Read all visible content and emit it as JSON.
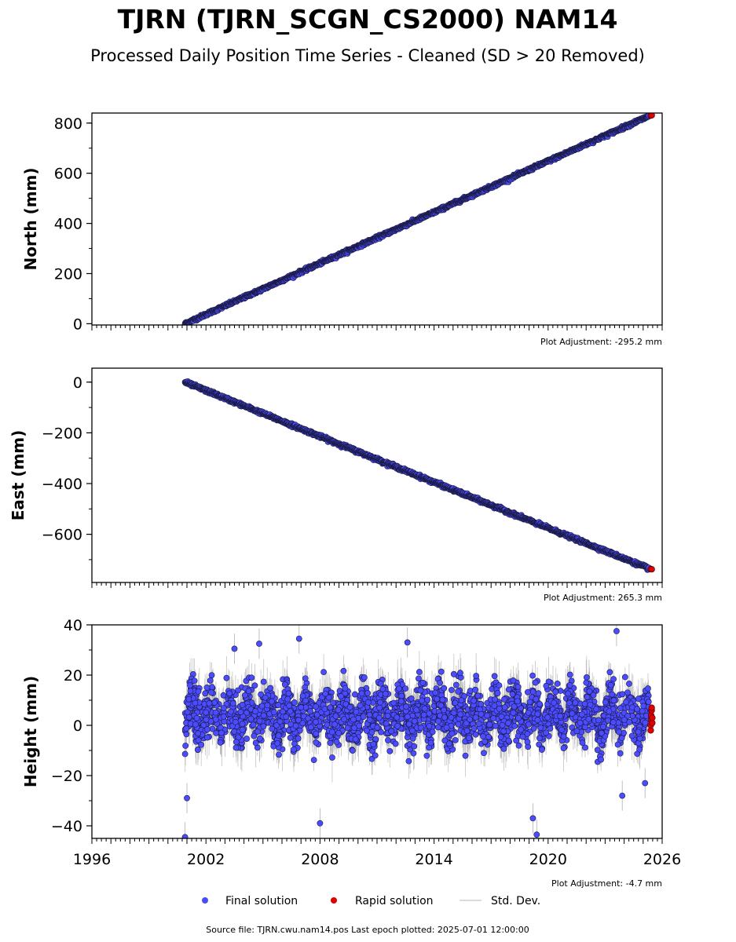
{
  "title": "TJRN (TJRN_SCGN_CS2000) NAM14",
  "subtitle": "Processed Daily Position Time Series - Cleaned (SD > 20 Removed)",
  "footer": "Source file: TJRN.cwu.nam14.pos  Last epoch plotted: 2025-07-01 12:00:00",
  "legend": {
    "final": "Final solution",
    "rapid": "Rapid solution",
    "std": "Std. Dev."
  },
  "colors": {
    "final": "#4b4bff",
    "rapid": "#e00000",
    "std": "#b0b0b0",
    "marker_edge": "#1a1a40"
  },
  "chart_data": [
    {
      "type": "scatter",
      "ylabel": "North (mm)",
      "adjustment": "Plot Adjustment: -295.2 mm",
      "xlim": [
        1996,
        2026
      ],
      "ylim": [
        -5,
        840
      ],
      "yticks": [
        0,
        200,
        400,
        600,
        800
      ],
      "ytick_labels": [
        "0",
        "200",
        "400",
        "600",
        "800"
      ],
      "series": [
        {
          "role": "final",
          "start": [
            2000.9,
            0
          ],
          "end": [
            2025.3,
            828
          ]
        },
        {
          "role": "rapid",
          "points": [
            [
              2025.4,
              830
            ],
            [
              2025.45,
              831
            ]
          ]
        }
      ]
    },
    {
      "type": "scatter",
      "ylabel": "East (mm)",
      "adjustment": "Plot Adjustment: 265.3 mm",
      "xlim": [
        1996,
        2026
      ],
      "ylim": [
        -790,
        55
      ],
      "yticks": [
        0,
        -200,
        -400,
        -600
      ],
      "ytick_labels": [
        "0",
        "−200",
        "−400",
        "−600"
      ],
      "series": [
        {
          "role": "final",
          "start": [
            2000.9,
            0
          ],
          "end": [
            2025.3,
            -735
          ]
        },
        {
          "role": "rapid",
          "points": [
            [
              2025.4,
              -737
            ],
            [
              2025.45,
              -738
            ]
          ]
        }
      ]
    },
    {
      "type": "scatter",
      "ylabel": "Height (mm)",
      "adjustment": "Plot Adjustment: -4.7 mm",
      "xlim": [
        1996,
        2026
      ],
      "ylim": [
        -45,
        40
      ],
      "yticks": [
        40,
        20,
        0,
        -20,
        -40
      ],
      "ytick_labels": [
        "40",
        "20",
        "0",
        "−20",
        "−40"
      ],
      "xticks": [
        1996,
        2002,
        2008,
        2014,
        2020,
        2026
      ],
      "xtick_labels": [
        "1996",
        "2002",
        "2008",
        "2014",
        "2020",
        "2026"
      ],
      "series": [
        {
          "role": "final",
          "x_range": [
            2000.9,
            2025.3
          ],
          "y_center": 4,
          "y_spread": 13,
          "outliers": [
            [
              2000.9,
              -44.5
            ],
            [
              2001.0,
              -29
            ],
            [
              2006.9,
              34.5
            ],
            [
              2008.0,
              -39
            ],
            [
              2019.2,
              -37
            ],
            [
              2019.4,
              -43.5
            ],
            [
              2023.6,
              37.5
            ],
            [
              2023.9,
              -28
            ],
            [
              2025.1,
              -23
            ],
            [
              2012.6,
              33
            ],
            [
              2004.8,
              32.5
            ],
            [
              2003.5,
              30.5
            ]
          ]
        },
        {
          "role": "rapid",
          "points": [
            [
              2025.4,
              -2
            ],
            [
              2025.4,
              0
            ],
            [
              2025.42,
              2
            ],
            [
              2025.42,
              4
            ],
            [
              2025.45,
              6
            ],
            [
              2025.45,
              7
            ],
            [
              2025.48,
              1
            ],
            [
              2025.48,
              3
            ]
          ]
        }
      ]
    }
  ]
}
